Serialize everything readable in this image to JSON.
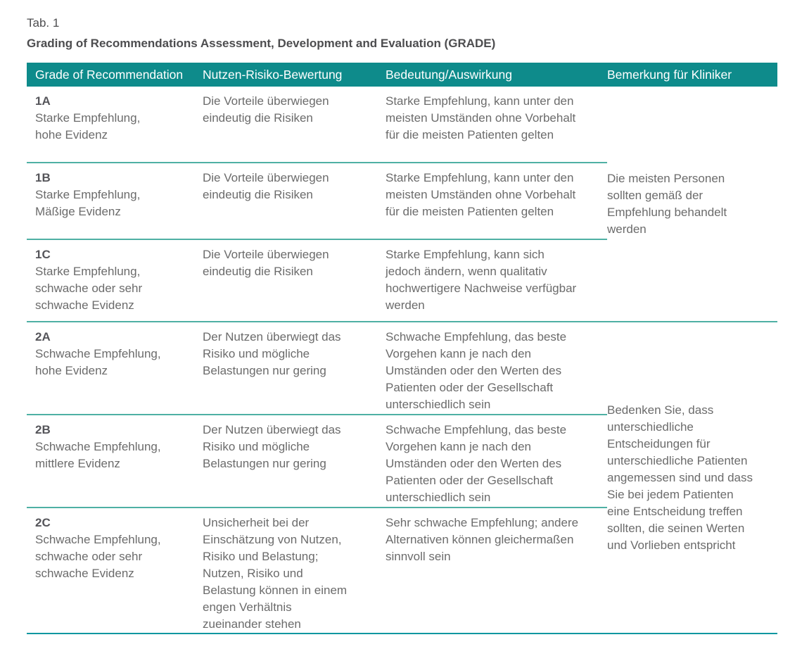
{
  "document": {
    "tab_label": "Tab. 1",
    "title": "Grading of Recommendations Assessment, Development and Evaluation (GRADE)"
  },
  "colors": {
    "header_background": "#0e8b8b",
    "header_text": "#ffffff",
    "row_divider": "#4fb0a4",
    "table_bottom_border": "#0f97a0",
    "body_text": "#6b6b6b",
    "grade_code_text": "#55555a",
    "title_text": "#4d4d4f"
  },
  "table": {
    "columns": [
      "Grade of Recommendation",
      "Nutzen-Risiko-Bewertung",
      "Bedeutung/Auswirkung",
      "Bemerkung für Kliniker"
    ],
    "groups": [
      {
        "remark": "Die meisten Personen sollten gemäß der Empfehlung behandelt werden",
        "rows": [
          {
            "grade": "1A",
            "label": "Starke Empfehlung,\nhohe Evidenz",
            "benefit_risk": "Die Vorteile überwiegen eindeutig die Risiken",
            "implication": "Starke Empfehlung, kann unter den meisten Umständen ohne Vorbehalt für die meisten Patienten gelten"
          },
          {
            "grade": "1B",
            "label": "Starke Empfehlung,\nMäßige Evidenz",
            "benefit_risk": "Die Vorteile überwiegen eindeutig die Risiken",
            "implication": "Starke Empfehlung, kann unter den meisten Umständen ohne Vorbehalt für die meisten Patienten gelten"
          },
          {
            "grade": "1C",
            "label": "Starke Empfehlung,\nschwache oder sehr\nschwache Evidenz",
            "benefit_risk": "Die Vorteile überwiegen eindeutig die Risiken",
            "implication": "Starke Empfehlung, kann sich jedoch ändern, wenn qualitativ hochwertigere Nachweise verfügbar werden"
          }
        ]
      },
      {
        "remark": "Bedenken Sie, dass unterschiedliche Entscheidungen für unterschiedliche Patienten angemessen sind und dass Sie bei jedem Patienten eine Entscheidung treffen sollten, die seinen Werten und Vorlieben entspricht",
        "rows": [
          {
            "grade": "2A",
            "label": "Schwache Empfehlung,\nhohe Evidenz",
            "benefit_risk": "Der Nutzen überwiegt das Risiko und mögliche Belastungen nur gering",
            "implication": "Schwache Empfehlung, das beste Vorgehen kann je nach den Umständen oder den Werten des Patienten oder der Gesellschaft unterschiedlich sein"
          },
          {
            "grade": "2B",
            "label": "Schwache Empfehlung,\nmittlere Evidenz",
            "benefit_risk": "Der Nutzen überwiegt das Risiko und mögliche Belastungen nur gering",
            "implication": "Schwache Empfehlung, das beste Vorgehen kann je nach den Umständen oder den Werten des Patienten oder der Gesellschaft unterschiedlich sein"
          },
          {
            "grade": "2C",
            "label": "Schwache Empfehlung,\nschwache oder sehr\nschwache Evidenz",
            "benefit_risk": "Unsicherheit bei der Einschätzung von Nutzen, Risiko und Belastung; Nutzen, Risiko und Belastung können in einem engen Verhältnis zueinander stehen",
            "implication": "Sehr schwache Empfehlung; andere Alternativen können gleichermaßen sinnvoll sein"
          }
        ]
      }
    ]
  }
}
